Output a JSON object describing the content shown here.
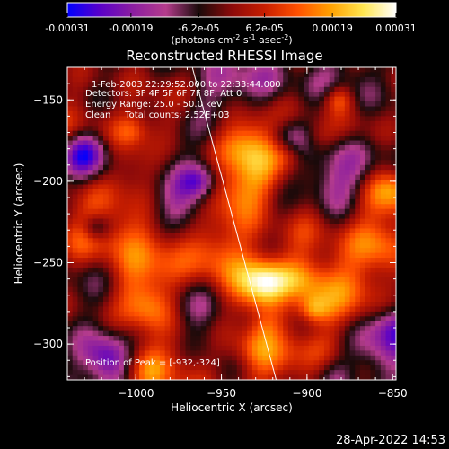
{
  "chart_data": {
    "type": "heatmap",
    "title": "Reconstructed RHESSI Image",
    "xlabel": "Heliocentric X (arcsec)",
    "ylabel": "Heliocentric Y (arcsec)",
    "xlim": [
      -1040,
      -848
    ],
    "ylim": [
      -322,
      -130
    ],
    "x_ticks": [
      -1000,
      -950,
      -900,
      -850
    ],
    "x_tick_labels": [
      "−1000",
      "−950",
      "−900",
      "−850"
    ],
    "y_ticks": [
      -150,
      -200,
      -250,
      -300
    ],
    "y_tick_labels": [
      "−150",
      "−200",
      "−250",
      "−300"
    ],
    "colorbar": {
      "range": [
        -0.00031,
        0.00031
      ],
      "tick_values": [
        -0.00031,
        -0.00019,
        -6.2e-05,
        6.2e-05,
        0.00019,
        0.00031
      ],
      "tick_labels": [
        "-0.00031",
        "-0.00019",
        "-6.2e-05",
        "6.2e-05",
        "0.00019",
        "0.00031"
      ],
      "units_main": "(photons cm",
      "units_exp1": "-2",
      "units_mid": " s",
      "units_exp2": "-1",
      "units_tail": " asec",
      "units_exp3": "-2",
      "units_close": ")",
      "colors": [
        "#0000ff",
        "#5a00c8",
        "#8c1ea0",
        "#b43c8c",
        "#1a0a0a",
        "#8c0a0a",
        "#c81e00",
        "#ff5000",
        "#ffa000",
        "#ffe650",
        "#ffffff"
      ]
    },
    "annotations": [
      "1-Feb-2003 22:29:52.000 to 22:33:44.000",
      "Detectors: 3F 4F 5F 6F 7F 8F, Att 0",
      "Energy Range: 25.0 - 50.0 keV",
      "Clean     Total counts: 2.52E+03"
    ],
    "peak_label": "Position of Peak = [-932,-324]",
    "limb_line": [
      [
        -967,
        -130
      ],
      [
        -918,
        -322
      ]
    ]
  },
  "timestamp": "28-Apr-2022 14:53"
}
